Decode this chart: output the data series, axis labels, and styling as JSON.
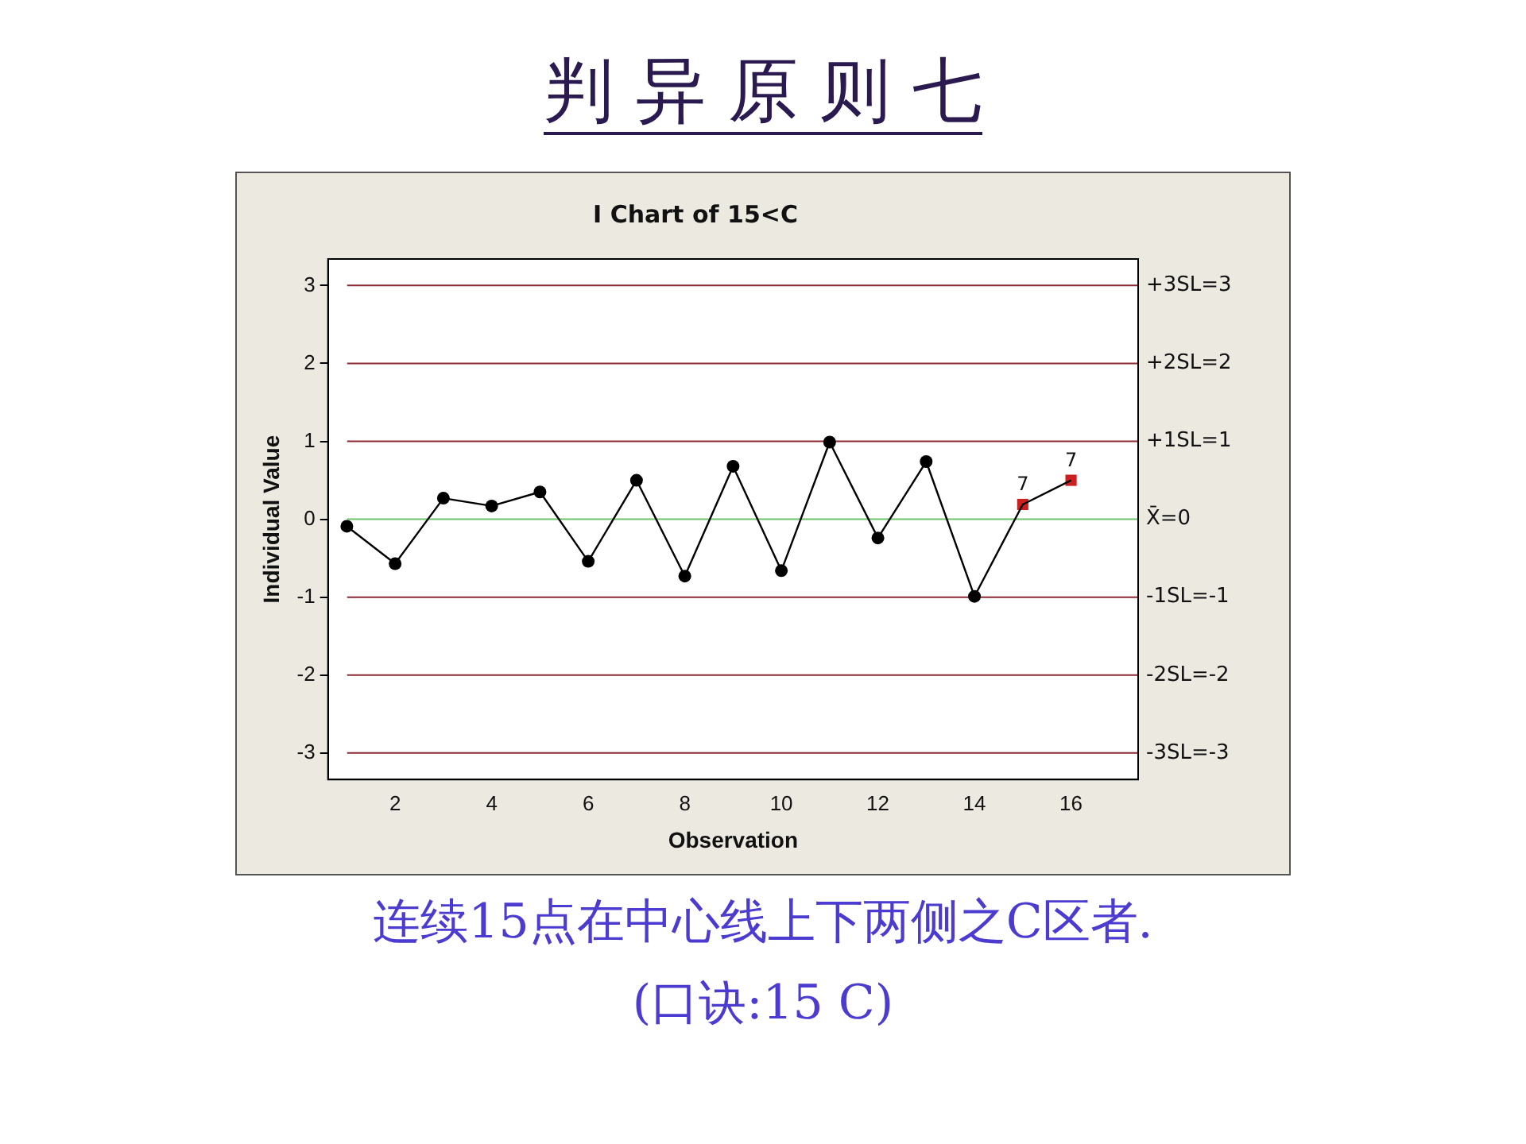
{
  "chart_data": {
    "type": "line",
    "title": "判 异 原 则 七",
    "subtitle": "I Chart of 15<C",
    "xlabel": "Observation",
    "ylabel": "Individual Value",
    "xlim": [
      0.61,
      17.39
    ],
    "xticks": [
      2,
      4,
      6,
      8,
      10,
      12,
      14,
      16
    ],
    "ylim": [
      -3.34,
      3.34
    ],
    "yticks": [
      -3,
      -2,
      -1,
      0,
      1,
      2,
      3
    ],
    "grid": false,
    "legend": false,
    "series": [
      {
        "color": "#000000",
        "marker": "none",
        "x": [
          1,
          2,
          3,
          4,
          5,
          6,
          7,
          8,
          9,
          10,
          11,
          12,
          13,
          14,
          15,
          16
        ],
        "values": [
          -0.09,
          -0.57,
          0.27,
          0.17,
          0.35,
          -0.54,
          0.5,
          -0.73,
          0.68,
          -0.66,
          0.99,
          -0.24,
          0.74,
          -0.99,
          0.19,
          0.5
        ]
      },
      {
        "type": "scatter",
        "color": "#000000",
        "marker": "circle",
        "x": [
          1,
          2,
          3,
          4,
          5,
          6,
          7,
          8,
          9,
          10,
          11,
          12,
          13,
          14
        ],
        "values": [
          -0.09,
          -0.57,
          0.27,
          0.17,
          0.35,
          -0.54,
          0.5,
          -0.73,
          0.68,
          -0.66,
          0.99,
          -0.24,
          0.74,
          -0.99
        ]
      },
      {
        "type": "scatter",
        "color": "#cc1f1f",
        "marker": "square",
        "x": [
          15,
          16
        ],
        "values": [
          0.19,
          0.5
        ]
      }
    ],
    "ref_lines": [
      {
        "axis": "y",
        "value": 3,
        "label": "+3SL=3",
        "color": "#8b2a35"
      },
      {
        "axis": "y",
        "value": 2,
        "label": "+2SL=2",
        "color": "#8b2a35"
      },
      {
        "axis": "y",
        "value": 1,
        "label": "+1SL=1",
        "color": "#8b2a35"
      },
      {
        "axis": "y",
        "value": 0,
        "label": "X̄=0",
        "color": "#6cc46c"
      },
      {
        "axis": "y",
        "value": -1,
        "label": "-1SL=-1",
        "color": "#8b2a35"
      },
      {
        "axis": "y",
        "value": -2,
        "label": "-2SL=-2",
        "color": "#8b2a35"
      },
      {
        "axis": "y",
        "value": -3,
        "label": "-3SL=-3",
        "color": "#8b2a35"
      }
    ],
    "annotations": [
      {
        "text": "7",
        "x": 15,
        "y": 0.19
      },
      {
        "text": "7",
        "x": 16,
        "y": 0.5
      },
      "连续15点在中心线上下两侧之C区者.",
      "(口诀:15 C)"
    ]
  }
}
